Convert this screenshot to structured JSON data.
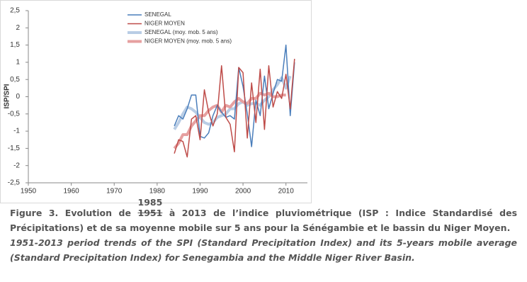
{
  "chart_data": {
    "type": "line",
    "y_label": "ISP/SPI",
    "x": [
      1984,
      1985,
      1986,
      1987,
      1988,
      1989,
      1990,
      1991,
      1992,
      1993,
      1994,
      1995,
      1996,
      1997,
      1998,
      1999,
      2000,
      2001,
      2002,
      2003,
      2004,
      2005,
      2006,
      2007,
      2008,
      2009,
      2010,
      2011,
      2012
    ],
    "series": [
      {
        "name": "SENEGAL",
        "color": "#4a7ebb",
        "line_width": 1.5,
        "values": [
          -0.85,
          -0.55,
          -0.65,
          -0.35,
          0.05,
          0.05,
          -1.15,
          -1.2,
          -1.05,
          -0.55,
          -0.25,
          -0.45,
          -0.6,
          -0.55,
          -0.65,
          0.85,
          0.3,
          -0.5,
          -1.45,
          -0.1,
          -0.55,
          0.6,
          -0.35,
          0.1,
          0.5,
          0.45,
          1.5,
          -0.55,
          1.0
        ]
      },
      {
        "name": "NIGER MOYEN",
        "color": "#be4b48",
        "line_width": 1.5,
        "values": [
          -1.65,
          -1.25,
          -1.3,
          -1.75,
          -0.65,
          -0.55,
          -1.25,
          0.2,
          -0.45,
          -0.85,
          -0.5,
          0.9,
          -0.6,
          -0.8,
          -1.6,
          0.85,
          0.7,
          -1.2,
          0.4,
          -0.75,
          0.8,
          -0.95,
          0.9,
          -0.3,
          0.15,
          -0.05,
          0.65,
          -0.35,
          1.1
        ]
      },
      {
        "name": "SENEGAL (moy. mob. 5 ans)",
        "color": "#b9cde5",
        "line_width": 4,
        "values": [
          -0.95,
          -0.75,
          -0.5,
          -0.3,
          -0.35,
          -0.45,
          -0.6,
          -0.75,
          -0.8,
          -0.75,
          -0.6,
          -0.55,
          -0.5,
          -0.35,
          -0.35,
          -0.2,
          -0.15,
          -0.25,
          -0.2,
          -0.2,
          -0.25,
          -0.1,
          0.0,
          0.2,
          0.35,
          0.55,
          0.25,
          0.6,
          null
        ]
      },
      {
        "name": "NIGER MOYEN (moy. mob. 5 ans)",
        "color": "#e6a0a0",
        "line_width": 4,
        "values": [
          -1.5,
          -1.35,
          -1.1,
          -1.1,
          -0.85,
          -0.7,
          -0.55,
          -0.55,
          -0.4,
          -0.3,
          -0.25,
          -0.45,
          -0.25,
          -0.3,
          -0.15,
          -0.05,
          -0.15,
          -0.2,
          -0.05,
          -0.05,
          0.1,
          0.05,
          0.1,
          0.0,
          0.0,
          0.05,
          0.05,
          null,
          null
        ]
      }
    ],
    "xlim": [
      1950,
      2015
    ],
    "xticks": [
      1950,
      1960,
      1970,
      1980,
      1990,
      2000,
      2010
    ],
    "ylim": [
      -2.5,
      2.5
    ],
    "yticks": [
      {
        "value": 2.5,
        "label": "2,5"
      },
      2,
      {
        "value": 1.5,
        "label": "1,5"
      },
      1,
      {
        "value": 0.5,
        "label": "0,5"
      },
      0,
      {
        "value": -0.5,
        "label": "-0,5"
      },
      -1,
      {
        "value": -1.5,
        "label": "-1,5"
      },
      -2,
      {
        "value": -2.5,
        "label": "-2,5"
      }
    ],
    "grid": false,
    "legend": "upper left"
  },
  "caption": {
    "french_before": "Figure 3. Evolution de ",
    "struck": "1951",
    "correction": "1985",
    "french_after": " à 2013 de l’indice pluviométrique (ISP : Indice Standardisé des Précipitations) et de sa moyenne mobile sur 5 ans pour la Sénégambie et le bassin du Niger Moyen.",
    "english": "1951-2013 period trends of the SPI (Standard Precipitation Index) and its 5-years mobile average (Standard Precipitation Index) for Senegambia and the Middle Niger River Basin."
  }
}
